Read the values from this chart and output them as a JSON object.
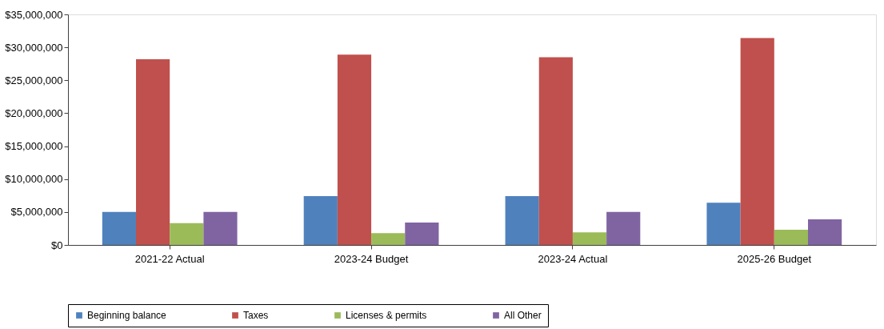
{
  "chart_data": {
    "type": "bar",
    "categories": [
      "2021-22 Actual",
      "2023-24 Budget",
      "2023-24 Actual",
      "2025-26 Budget"
    ],
    "series": [
      {
        "name": "Beginning balance",
        "color": "#4f81bd",
        "values": [
          5000000,
          7400000,
          7400000,
          6400000
        ]
      },
      {
        "name": "Taxes",
        "color": "#c0504d",
        "values": [
          28200000,
          28900000,
          28500000,
          31400000
        ]
      },
      {
        "name": "Licenses & permits",
        "color": "#9bbb59",
        "values": [
          3300000,
          1800000,
          1900000,
          2300000
        ]
      },
      {
        "name": "All Other",
        "color": "#8064a2",
        "values": [
          5000000,
          3400000,
          5000000,
          3900000
        ]
      }
    ],
    "ylim": [
      0,
      35000000
    ],
    "yticks": [
      {
        "value": 0,
        "label": "$0"
      },
      {
        "value": 5000000,
        "label": "$5,000,000"
      },
      {
        "value": 10000000,
        "label": "$10,000,000"
      },
      {
        "value": 15000000,
        "label": "$15,000,000"
      },
      {
        "value": 20000000,
        "label": "$20,000,000"
      },
      {
        "value": 25000000,
        "label": "$25,000,000"
      },
      {
        "value": 30000000,
        "label": "$30,000,000"
      },
      {
        "value": 35000000,
        "label": "$35,000,000"
      }
    ],
    "grid": false,
    "legend": "bottom"
  }
}
